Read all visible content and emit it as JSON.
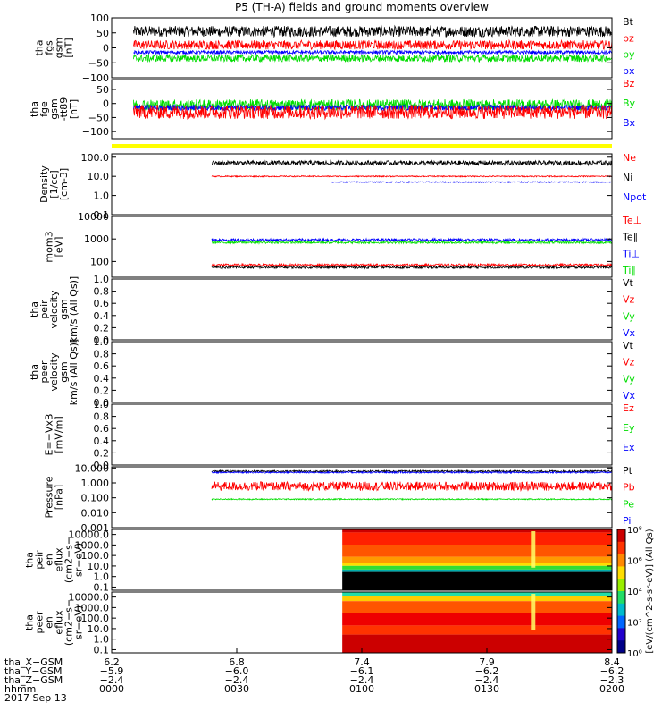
{
  "title": "P5 (TH-A) fields and ground moments overview",
  "date_label": "2017 Sep 13",
  "colors": {
    "black": "#000000",
    "red": "#ff0000",
    "green": "#00dd00",
    "blue": "#0000ff",
    "yellow": "#ffff00"
  },
  "panels": [
    {
      "ylabel_lines": [
        "tha",
        "fgs",
        "gsm",
        "[nT]"
      ],
      "ticks": [
        "100",
        "50",
        "0",
        "−50",
        "−100"
      ],
      "tick_vals": [
        100,
        50,
        0,
        -50,
        -100
      ],
      "ymin": -100,
      "ymax": 100,
      "log": false,
      "legend": [
        {
          "text": "Bt",
          "color": "#000000"
        },
        {
          "text": "bz",
          "color": "#ff0000"
        },
        {
          "text": "by",
          "color": "#00dd00"
        },
        {
          "text": "bx",
          "color": "#0000ff"
        }
      ],
      "series": [
        {
          "name": "Bt",
          "color": "#000000",
          "t0": 0.0435,
          "t1": 1,
          "base": 55,
          "amp": 18
        },
        {
          "name": "bz",
          "color": "#ff0000",
          "t0": 0.0435,
          "t1": 1,
          "base": 10,
          "amp": 15
        },
        {
          "name": "bx",
          "color": "#0000ff",
          "t0": 0.0435,
          "t1": 1,
          "base": -15,
          "amp": 6
        },
        {
          "name": "by",
          "color": "#00dd00",
          "t0": 0.0435,
          "t1": 1,
          "base": -35,
          "amp": 12
        }
      ]
    },
    {
      "ylabel_lines": [
        "tha",
        "fge",
        "gsm",
        "-tt89",
        "[nT]"
      ],
      "ticks": [
        "50",
        "0",
        "−50",
        "−100"
      ],
      "tick_vals": [
        50,
        0,
        -50,
        -100
      ],
      "ymin": -125,
      "ymax": 85,
      "log": false,
      "legend": [
        {
          "text": "Bz",
          "color": "#ff0000"
        },
        {
          "text": "By",
          "color": "#00dd00"
        },
        {
          "text": "Bx",
          "color": "#0000ff"
        }
      ],
      "series": [
        {
          "name": "By",
          "color": "#00dd00",
          "t0": 0.0435,
          "t1": 1,
          "base": -5,
          "amp": 20
        },
        {
          "name": "Bx",
          "color": "#0000ff",
          "t0": 0.0435,
          "t1": 1,
          "base": -15,
          "amp": 10
        },
        {
          "name": "Bz",
          "color": "#ff0000",
          "t0": 0.0435,
          "t1": 1,
          "base": -30,
          "amp": 25
        }
      ]
    },
    {
      "ylabel_lines": [
        "Density",
        "[1/cc]",
        "[cm-3]"
      ],
      "ticks": [
        "100.0",
        "10.0",
        "1.0",
        "0.1"
      ],
      "tick_vals": [
        100,
        10,
        1,
        0.1
      ],
      "ymin": 0.1,
      "ymax": 150,
      "log": true,
      "legend": [
        {
          "text": "Ne",
          "color": "#ff0000"
        },
        {
          "text": "Ni",
          "color": "#000000"
        },
        {
          "text": "Npot",
          "color": "#0000ff"
        }
      ],
      "series": [
        {
          "name": "Ni",
          "color": "#000000",
          "t0": 0.2,
          "t1": 1,
          "base": 50,
          "amp": 0.12
        },
        {
          "name": "Ne",
          "color": "#ff0000",
          "t0": 0.2,
          "t1": 1,
          "base": 10,
          "amp": 0.03
        },
        {
          "name": "Npot",
          "color": "#0000ff",
          "t0": 0.44,
          "t1": 1,
          "base": 5,
          "amp": 0.03
        }
      ]
    },
    {
      "ylabel_lines": [
        "mom3",
        "[eV]"
      ],
      "ticks": [
        "10000",
        "1000",
        "100"
      ],
      "tick_vals": [
        10000,
        1000,
        100
      ],
      "ymin": 20,
      "ymax": 10000,
      "log": true,
      "legend": [
        {
          "text": "Te⊥",
          "color": "#ff0000"
        },
        {
          "text": "Te∥",
          "color": "#000000"
        },
        {
          "text": "Ti⊥",
          "color": "#0000ff"
        },
        {
          "text": "Ti∥",
          "color": "#00dd00"
        }
      ],
      "series": [
        {
          "name": "Ti⊥",
          "color": "#0000ff",
          "t0": 0.2,
          "t1": 1,
          "base": 900,
          "amp": 0.06
        },
        {
          "name": "Ti∥",
          "color": "#00dd00",
          "t0": 0.2,
          "t1": 1,
          "base": 700,
          "amp": 0.05
        },
        {
          "name": "Te⊥",
          "color": "#ff0000",
          "t0": 0.2,
          "t1": 1,
          "base": 70,
          "amp": 0.05
        },
        {
          "name": "Te∥",
          "color": "#000000",
          "t0": 0.2,
          "t1": 1,
          "base": 55,
          "amp": 0.05
        }
      ]
    },
    {
      "ylabel_lines": [
        "tha",
        "peir",
        "velocity",
        "gsm",
        "km/s (All Qs)]"
      ],
      "ticks": [
        "1.0",
        "0.8",
        "0.6",
        "0.4",
        "0.2",
        "0.0"
      ],
      "tick_vals": [
        1,
        0.8,
        0.6,
        0.4,
        0.2,
        0
      ],
      "ymin": 0,
      "ymax": 1,
      "log": false,
      "legend": [
        {
          "text": "Vt",
          "color": "#000000"
        },
        {
          "text": "Vz",
          "color": "#ff0000"
        },
        {
          "text": "Vy",
          "color": "#00dd00"
        },
        {
          "text": "Vx",
          "color": "#0000ff"
        }
      ],
      "series": []
    },
    {
      "ylabel_lines": [
        "tha",
        "peer",
        "velocity",
        "gsm",
        "km/s (All Qs)]"
      ],
      "ticks": [
        "1.0",
        "0.8",
        "0.6",
        "0.4",
        "0.2",
        "0.0"
      ],
      "tick_vals": [
        1,
        0.8,
        0.6,
        0.4,
        0.2,
        0
      ],
      "ymin": 0,
      "ymax": 1,
      "log": false,
      "legend": [
        {
          "text": "Vt",
          "color": "#000000"
        },
        {
          "text": "Vz",
          "color": "#ff0000"
        },
        {
          "text": "Vy",
          "color": "#00dd00"
        },
        {
          "text": "Vx",
          "color": "#0000ff"
        }
      ],
      "series": []
    },
    {
      "ylabel_lines": [
        "E=−VxB",
        "[mV/m]"
      ],
      "ticks": [
        "1.0",
        "0.8",
        "0.6",
        "0.4",
        "0.2",
        "0.0"
      ],
      "tick_vals": [
        1,
        0.8,
        0.6,
        0.4,
        0.2,
        0
      ],
      "ymin": 0,
      "ymax": 1,
      "log": false,
      "legend": [
        {
          "text": "Ez",
          "color": "#ff0000"
        },
        {
          "text": "Ey",
          "color": "#00dd00"
        },
        {
          "text": "Ex",
          "color": "#0000ff"
        }
      ],
      "series": []
    },
    {
      "ylabel_lines": [
        "Pressure",
        "[nPa]"
      ],
      "ticks": [
        "10.000",
        "1.000",
        "0.100",
        "0.010",
        "0.001"
      ],
      "tick_vals": [
        10,
        1,
        0.1,
        0.01,
        0.001
      ],
      "ymin": 0.001,
      "ymax": 12,
      "log": true,
      "legend": [
        {
          "text": "Pt",
          "color": "#000000"
        },
        {
          "text": "Pb",
          "color": "#ff0000"
        },
        {
          "text": "Pe",
          "color": "#00dd00"
        },
        {
          "text": "Pi",
          "color": "#0000ff"
        }
      ],
      "series": [
        {
          "name": "Pt",
          "color": "#000000",
          "t0": 0.2,
          "t1": 1,
          "base": 6,
          "amp": 0.06
        },
        {
          "name": "Pi",
          "color": "#0000ff",
          "t0": 0.2,
          "t1": 1,
          "base": 5,
          "amp": 0.05
        },
        {
          "name": "Pb",
          "color": "#ff0000",
          "t0": 0.2,
          "t1": 1,
          "base": 0.6,
          "amp": 0.3
        },
        {
          "name": "Pe",
          "color": "#00dd00",
          "t0": 0.2,
          "t1": 1,
          "base": 0.08,
          "amp": 0.04
        }
      ]
    },
    {
      "ylabel_lines": [
        "tha",
        "peir",
        "en",
        "eflux",
        "(cm2−s−",
        "sr−eV)"
      ],
      "ticks": [
        "10000.0",
        "1000.0",
        "100.0",
        "10.0",
        "1.0",
        "0.1"
      ],
      "tick_vals": [
        10000,
        1000,
        100,
        10,
        1,
        0.1
      ],
      "ymin": 0.05,
      "ymax": 30000,
      "log": true,
      "legend": [],
      "series": []
    },
    {
      "ylabel_lines": [
        "tha",
        "peer",
        "en",
        "eflux",
        "(cm2−s−",
        "sr−eV)"
      ],
      "ticks": [
        "10000.0",
        "1000.0",
        "100.0",
        "10.0",
        "1.0",
        "0.1"
      ],
      "tick_vals": [
        10000,
        1000,
        100,
        10,
        1,
        0.1
      ],
      "ymin": 0.05,
      "ymax": 30000,
      "log": true,
      "legend": [],
      "series": []
    }
  ],
  "colorbar": {
    "label": "[eV/(cm^2-s-sr-eV)] (All Qs)",
    "ticks": [
      "10⁸",
      "10⁶",
      "10⁴",
      "10²",
      "10⁰"
    ],
    "tick_vals": [
      8,
      6,
      4,
      2,
      0
    ]
  },
  "x_axis": {
    "row_labels": [
      "tha_X−GSM",
      "tha_Y−GSM",
      "tha_Z−GSM",
      "hhmm"
    ],
    "rows": [
      [
        "6.2",
        "6.8",
        "7.4",
        "7.9",
        "8.4"
      ],
      [
        "−5.9",
        "−6.0",
        "−6.1",
        "−6.2",
        "−6.2"
      ],
      [
        "−2.4",
        "−2.4",
        "−2.4",
        "−2.4",
        "−2.3"
      ],
      [
        "0000",
        "0030",
        "0100",
        "0130",
        "0200"
      ]
    ],
    "tick_times_min": [
      0,
      30,
      60,
      90,
      120
    ]
  },
  "chart_data": {
    "type": "line",
    "title": "P5 (TH-A) fields and ground moments overview",
    "x_range_hhmm": [
      "0000",
      "0200"
    ],
    "date": "2017 Sep 13",
    "xlabel": "hhmm",
    "x_ticks": [
      "0000",
      "0030",
      "0100",
      "0130",
      "0200"
    ],
    "panels": [
      {
        "ylabel": "tha fgs gsm [nT]",
        "ylim": [
          -100,
          100
        ],
        "series": [
          {
            "name": "Bt",
            "approx_level": 55
          },
          {
            "name": "bz",
            "approx_level": 10
          },
          {
            "name": "by",
            "approx_level": -35
          },
          {
            "name": "bx",
            "approx_level": -15
          }
        ]
      },
      {
        "ylabel": "tha fge gsm -tt89 [nT]",
        "ylim": [
          -125,
          85
        ],
        "series": [
          {
            "name": "Bz",
            "approx_level": -30
          },
          {
            "name": "By",
            "approx_level": -5
          },
          {
            "name": "Bx",
            "approx_level": -15
          }
        ]
      },
      {
        "ylabel": "Density [1/cc] [cm-3]",
        "ylim": [
          0.1,
          150
        ],
        "scale": "log",
        "series": [
          {
            "name": "Ne",
            "approx_level": 10
          },
          {
            "name": "Ni",
            "approx_level": 50
          },
          {
            "name": "Npot",
            "approx_level": 5
          }
        ]
      },
      {
        "ylabel": "mom3 [eV]",
        "ylim": [
          20,
          10000
        ],
        "scale": "log",
        "series": [
          {
            "name": "Te⊥",
            "approx_level": 70
          },
          {
            "name": "Te∥",
            "approx_level": 55
          },
          {
            "name": "Ti⊥",
            "approx_level": 900
          },
          {
            "name": "Ti∥",
            "approx_level": 700
          }
        ]
      },
      {
        "ylabel": "tha peir velocity gsm km/s (All Qs)]",
        "ylim": [
          0,
          1
        ],
        "series": []
      },
      {
        "ylabel": "tha peer velocity gsm km/s (All Qs)]",
        "ylim": [
          0,
          1
        ],
        "series": []
      },
      {
        "ylabel": "E=−VxB [mV/m]",
        "ylim": [
          0,
          1
        ],
        "series": []
      },
      {
        "ylabel": "Pressure [nPa]",
        "ylim": [
          0.001,
          12
        ],
        "scale": "log",
        "series": [
          {
            "name": "Pt",
            "approx_level": 6
          },
          {
            "name": "Pb",
            "approx_level": 0.6
          },
          {
            "name": "Pe",
            "approx_level": 0.08
          },
          {
            "name": "Pi",
            "approx_level": 5
          }
        ]
      },
      {
        "ylabel": "tha peir en eflux (cm2−s−sr−eV)",
        "type": "heatmap",
        "ylim": [
          0.05,
          30000
        ],
        "scale": "log"
      },
      {
        "ylabel": "tha peer en eflux (cm2−s−sr−eV)",
        "type": "heatmap",
        "ylim": [
          0.05,
          30000
        ],
        "scale": "log"
      }
    ]
  }
}
